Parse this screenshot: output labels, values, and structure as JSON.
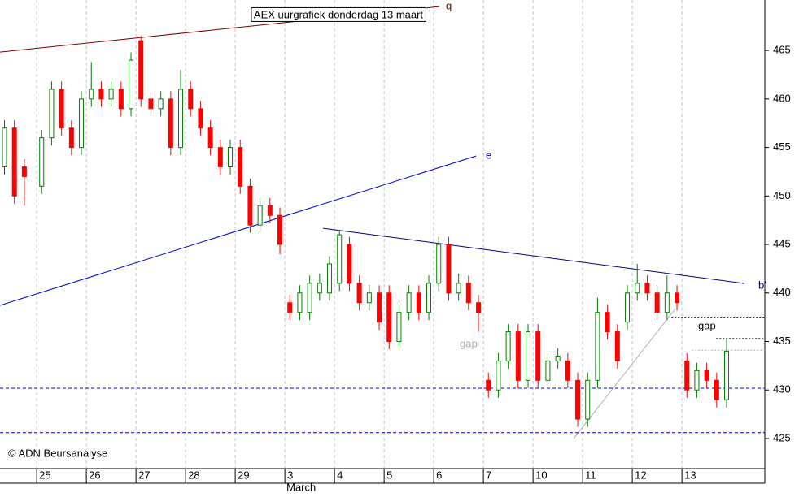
{
  "chart_data": {
    "type": "candlestick",
    "title": "AEX uurgrafiek donderdag 13 maart",
    "credit": "© ADN Beursanalyse",
    "x_label": "March",
    "xlim": [
      -0.74,
      14.67
    ],
    "xticks": [
      {
        "value": 0,
        "label": "25"
      },
      {
        "value": 1,
        "label": "26"
      },
      {
        "value": 2,
        "label": "27"
      },
      {
        "value": 3,
        "label": "28"
      },
      {
        "value": 4,
        "label": "29"
      },
      {
        "value": 5,
        "label": "3"
      },
      {
        "value": 6,
        "label": "4"
      },
      {
        "value": 7,
        "label": "5"
      },
      {
        "value": 8,
        "label": "6"
      },
      {
        "value": 9,
        "label": "7"
      },
      {
        "value": 10,
        "label": "10"
      },
      {
        "value": 11,
        "label": "11"
      },
      {
        "value": 12,
        "label": "12"
      },
      {
        "value": 13,
        "label": "13"
      }
    ],
    "ylim": [
      421.9,
      470.2
    ],
    "yticks": [
      425,
      430,
      435,
      440,
      445,
      450,
      455,
      460,
      465
    ],
    "grid": true,
    "up_color": "#008000",
    "down_color": "#ff0000",
    "candles": {
      "x": [
        -0.65,
        -0.45,
        -0.25,
        0.1,
        0.3,
        0.5,
        0.7,
        0.9,
        1.1,
        1.3,
        1.5,
        1.7,
        1.9,
        2.1,
        2.3,
        2.5,
        2.7,
        2.9,
        3.1,
        3.3,
        3.5,
        3.7,
        3.9,
        4.1,
        4.3,
        4.5,
        4.7,
        4.9,
        5.1,
        5.3,
        5.5,
        5.7,
        5.9,
        6.1,
        6.3,
        6.5,
        6.7,
        6.9,
        7.1,
        7.3,
        7.5,
        7.7,
        7.9,
        8.1,
        8.3,
        8.5,
        8.7,
        8.9,
        9.1,
        9.3,
        9.5,
        9.7,
        9.9,
        10.1,
        10.3,
        10.5,
        10.7,
        10.9,
        11.1,
        11.3,
        11.5,
        11.7,
        11.9,
        12.1,
        12.3,
        12.5,
        12.7,
        12.9,
        13.1,
        13.3,
        13.5,
        13.7,
        13.9
      ],
      "open": [
        453,
        457,
        453,
        451,
        456,
        461,
        457,
        455,
        460,
        461,
        460,
        461,
        459,
        466,
        460,
        459,
        460,
        455,
        461,
        459,
        457,
        455,
        453,
        455,
        451,
        447,
        449,
        448,
        439,
        438,
        438,
        440,
        440,
        441,
        445,
        441,
        439,
        440,
        440,
        435,
        438,
        440,
        438,
        441,
        445,
        440,
        441,
        439,
        431,
        430,
        433,
        436,
        431,
        436,
        431,
        433,
        433,
        431,
        427,
        431,
        438,
        436,
        437,
        440,
        441,
        440,
        438,
        440,
        433,
        430,
        432,
        431,
        429
      ],
      "high": [
        457.8,
        457.8,
        453.8,
        456.8,
        461.8,
        461.8,
        457.8,
        460.8,
        463.8,
        461.8,
        461.8,
        461.8,
        464.8,
        466.5,
        460.8,
        460.8,
        460.8,
        463,
        461.8,
        459.8,
        457.8,
        455.8,
        455.8,
        455.8,
        451.8,
        449.8,
        449.8,
        448.8,
        439.8,
        440.8,
        441.8,
        442,
        443.8,
        446.5,
        445.8,
        441.8,
        440.8,
        440.8,
        440.8,
        438.8,
        440.8,
        440.8,
        441.8,
        445.8,
        445.8,
        442,
        441.8,
        439.8,
        431.8,
        433.8,
        436.8,
        436.8,
        436.8,
        436.8,
        433.8,
        434.3,
        433.8,
        431.8,
        431.8,
        439.5,
        438.8,
        436.8,
        440.8,
        443,
        441.8,
        440.8,
        441.8,
        440.8,
        433.8,
        432.8,
        432.8,
        431.8,
        435.2
      ],
      "low": [
        452.2,
        449.2,
        449,
        450.2,
        455.2,
        456.2,
        454.2,
        454.2,
        459.2,
        459.2,
        459.2,
        458.2,
        458.2,
        459.2,
        458.2,
        458.2,
        454.2,
        454.2,
        458.2,
        456.2,
        454.2,
        452.2,
        452.2,
        450.2,
        446.2,
        446.2,
        447.2,
        444,
        437.2,
        437.2,
        437.2,
        439.2,
        439.2,
        440.2,
        440.2,
        438.2,
        438.2,
        436.2,
        434.2,
        434.2,
        437.2,
        437.2,
        437.2,
        440.2,
        439.2,
        439.2,
        438.2,
        436,
        429.2,
        429.2,
        432.2,
        430.2,
        430.2,
        430.2,
        430.2,
        432.2,
        430.2,
        426.2,
        426.2,
        430.2,
        435.2,
        432.2,
        436.2,
        439.2,
        439.2,
        437.2,
        437.2,
        438.2,
        429.2,
        429.2,
        430.2,
        428.2,
        428.2
      ],
      "close": [
        457,
        450,
        452,
        456,
        461,
        457,
        455,
        460,
        461,
        460,
        461,
        459,
        464,
        460,
        459,
        460,
        455,
        461,
        459,
        457,
        455,
        453,
        455,
        451,
        447,
        449,
        448,
        445,
        438,
        440,
        441,
        441,
        443,
        446,
        441,
        439,
        440,
        437,
        435,
        438,
        440,
        438,
        441,
        445,
        440,
        441,
        439,
        438,
        430,
        433,
        436,
        431,
        436,
        431,
        433,
        433.5,
        431,
        427,
        431,
        438,
        436,
        433,
        440,
        441,
        440,
        438,
        440,
        439,
        430,
        432,
        431,
        429,
        434
      ]
    },
    "lines": [
      {
        "name": "q",
        "color": "#800000",
        "style": "solid",
        "x": [
          -0.74,
          8.11
        ],
        "y": [
          464.83,
          469.52
        ]
      },
      {
        "name": "e",
        "color": "#0000cc",
        "style": "solid",
        "x": [
          -0.74,
          8.85
        ],
        "y": [
          438.72,
          454.12
        ]
      },
      {
        "name": "b'",
        "color": "#000080",
        "style": "solid",
        "x": [
          5.77,
          14.26
        ],
        "y": [
          446.67,
          440.98
        ]
      },
      {
        "color": "#b0b0b0",
        "style": "solid",
        "x": [
          10.82,
          12.87
        ],
        "y": [
          425.0,
          438.39
        ]
      },
      {
        "color": "#0000cc",
        "style": "dashed",
        "x": [
          -0.74,
          14.67
        ],
        "y": [
          430.19,
          430.19
        ]
      },
      {
        "color": "#0000cc",
        "style": "dashed",
        "x": [
          -0.74,
          14.67
        ],
        "y": [
          425.6,
          425.6
        ]
      },
      {
        "color": "#000000",
        "style": "dotted",
        "x": [
          12.79,
          14.67
        ],
        "y": [
          437.5,
          437.5
        ]
      },
      {
        "color": "#000000",
        "style": "dotted",
        "x": [
          13.69,
          14.67
        ],
        "y": [
          435.3,
          435.3
        ]
      },
      {
        "color": "#b0b0b0",
        "style": "dotted",
        "x": [
          13.2,
          14.67
        ],
        "y": [
          434.1,
          434.1
        ]
      }
    ],
    "annotations": [
      {
        "text": "gap",
        "color": "#000000"
      },
      {
        "text": "gap",
        "color": "#b0b0b0"
      }
    ]
  }
}
